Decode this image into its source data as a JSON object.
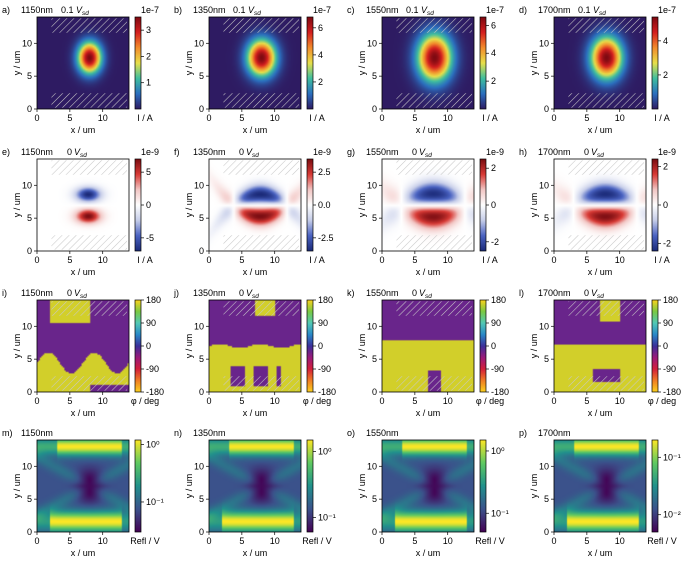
{
  "figure": {
    "x_axis_label": "x / um",
    "y_axis_label": "y / um",
    "x_ticks": [
      "0",
      "5",
      "10"
    ],
    "y_ticks": [
      "0",
      "5",
      "10"
    ],
    "x_range": [
      0,
      14
    ],
    "y_range": [
      0,
      14
    ]
  },
  "colormaps": {
    "current_positive": [
      "#2e1b62",
      "#2b6fbf",
      "#3fbf9f",
      "#e8e04a",
      "#f28b2c",
      "#d41f1f",
      "#7e0a12"
    ],
    "current_diverging": [
      "#1b2a78",
      "#4a63c2",
      "#c6cde9",
      "#ffffff",
      "#f2c6c4",
      "#d83a35",
      "#7a0d12"
    ],
    "phase": [
      "#fcd21e",
      "#f07d24",
      "#d41f3a",
      "#9a1a7a",
      "#3b2f9a",
      "#2a89c8",
      "#52c9b6",
      "#7ac943",
      "#fcd21e"
    ],
    "reflection": [
      "#440154",
      "#3b528b",
      "#21918c",
      "#5ec962",
      "#fde725"
    ]
  },
  "chart_data": {
    "type": "heatmap",
    "rows": [
      {
        "quantity": "photocurrent at 0.1 Vsd",
        "kind": "current_positive",
        "colorbar_label": "I / A",
        "panels": [
          {
            "letter": "a)",
            "wavelength": "1150nm",
            "bias": "0.1",
            "multiplier": "1e-7",
            "clim": [
              0,
              3.5
            ],
            "ticks": [
              "1",
              "2",
              "3"
            ],
            "tick_values": [
              1,
              2,
              3
            ]
          },
          {
            "letter": "b)",
            "wavelength": "1350nm",
            "bias": "0.1",
            "multiplier": "1e-7",
            "clim": [
              0,
              6.8
            ],
            "ticks": [
              "2",
              "4",
              "6"
            ],
            "tick_values": [
              2,
              4,
              6
            ]
          },
          {
            "letter": "c)",
            "wavelength": "1550nm",
            "bias": "0.1",
            "multiplier": "1e-7",
            "clim": [
              0,
              6.6
            ],
            "ticks": [
              "2",
              "4",
              "6"
            ],
            "tick_values": [
              2,
              4,
              6
            ]
          },
          {
            "letter": "d)",
            "wavelength": "1700nm",
            "bias": "0.1",
            "multiplier": "1e-7",
            "clim": [
              0,
              5.4
            ],
            "ticks": [
              "2",
              "4"
            ],
            "tick_values": [
              2,
              4
            ]
          }
        ]
      },
      {
        "quantity": "photocurrent at 0 Vsd",
        "kind": "current_diverging",
        "colorbar_label": "I / A",
        "panels": [
          {
            "letter": "e)",
            "wavelength": "1150nm",
            "bias": "0",
            "multiplier": "1e-9",
            "clim": [
              -7,
              7
            ],
            "ticks": [
              "5",
              "0",
              "-5"
            ],
            "tick_values": [
              5,
              0,
              -5
            ]
          },
          {
            "letter": "f)",
            "wavelength": "1350nm",
            "bias": "0",
            "multiplier": "1e-9",
            "clim": [
              -3.5,
              3.5
            ],
            "ticks": [
              "2.5",
              "0.0",
              "-2.5"
            ],
            "tick_values": [
              2.5,
              0,
              -2.5
            ]
          },
          {
            "letter": "g)",
            "wavelength": "1550nm",
            "bias": "0",
            "multiplier": "1e-9",
            "clim": [
              -2.5,
              2.5
            ],
            "ticks": [
              "2",
              "0",
              "-2"
            ],
            "tick_values": [
              2,
              0,
              -2
            ]
          },
          {
            "letter": "h)",
            "wavelength": "1700nm",
            "bias": "0",
            "multiplier": "1e-9",
            "clim": [
              -2.4,
              2.4
            ],
            "ticks": [
              "2",
              "0",
              "-2"
            ],
            "tick_values": [
              2,
              0,
              -2
            ]
          }
        ]
      },
      {
        "quantity": "photocurrent phase",
        "kind": "phase",
        "colorbar_label": "φ / deg",
        "panels": [
          {
            "letter": "i)",
            "wavelength": "1150nm",
            "bias": "0",
            "multiplier": "",
            "clim": [
              -180,
              180
            ],
            "ticks": [
              "180",
              "90",
              "0",
              "-90",
              "-180"
            ],
            "tick_values": [
              180,
              90,
              0,
              -90,
              -180
            ]
          },
          {
            "letter": "j)",
            "wavelength": "1350nm",
            "bias": "0",
            "multiplier": "",
            "clim": [
              -180,
              180
            ],
            "ticks": [
              "180",
              "90",
              "0",
              "-90",
              "-180"
            ],
            "tick_values": [
              180,
              90,
              0,
              -90,
              -180
            ]
          },
          {
            "letter": "k)",
            "wavelength": "1550nm",
            "bias": "0",
            "multiplier": "",
            "clim": [
              -180,
              180
            ],
            "ticks": [
              "180",
              "90",
              "0",
              "-90",
              "-180"
            ],
            "tick_values": [
              180,
              90,
              0,
              -90,
              -180
            ]
          },
          {
            "letter": "l)",
            "wavelength": "1700nm",
            "bias": "0",
            "multiplier": "",
            "clim": [
              -180,
              180
            ],
            "ticks": [
              "180",
              "90",
              "0",
              "-90",
              "-180"
            ],
            "tick_values": [
              180,
              90,
              0,
              -90,
              -180
            ]
          }
        ]
      },
      {
        "quantity": "reflection",
        "kind": "reflection",
        "colorbar_label": "Refl / V",
        "colorbar_scale": "log",
        "panels": [
          {
            "letter": "m)",
            "wavelength": "1150nm",
            "bias": "",
            "multiplier": "",
            "clim": [
              0.03,
              1.2
            ],
            "ticks": [
              "10⁰",
              "10⁻¹"
            ],
            "tick_values": [
              1,
              0.1
            ]
          },
          {
            "letter": "n)",
            "wavelength": "1350nm",
            "bias": "",
            "multiplier": "",
            "clim": [
              0.06,
              1.5
            ],
            "ticks": [
              "10⁰",
              "10⁻¹"
            ],
            "tick_values": [
              1,
              0.1
            ]
          },
          {
            "letter": "o)",
            "wavelength": "1550nm",
            "bias": "",
            "multiplier": "",
            "clim": [
              0.05,
              1.5
            ],
            "ticks": [
              "10⁰",
              "10⁻¹"
            ],
            "tick_values": [
              1,
              0.1
            ]
          },
          {
            "letter": "p)",
            "wavelength": "1700nm",
            "bias": "",
            "multiplier": "",
            "clim": [
              0.005,
              0.2
            ],
            "ticks": [
              "10⁻¹",
              "10⁻²"
            ],
            "tick_values": [
              0.1,
              0.01
            ]
          }
        ]
      }
    ]
  }
}
